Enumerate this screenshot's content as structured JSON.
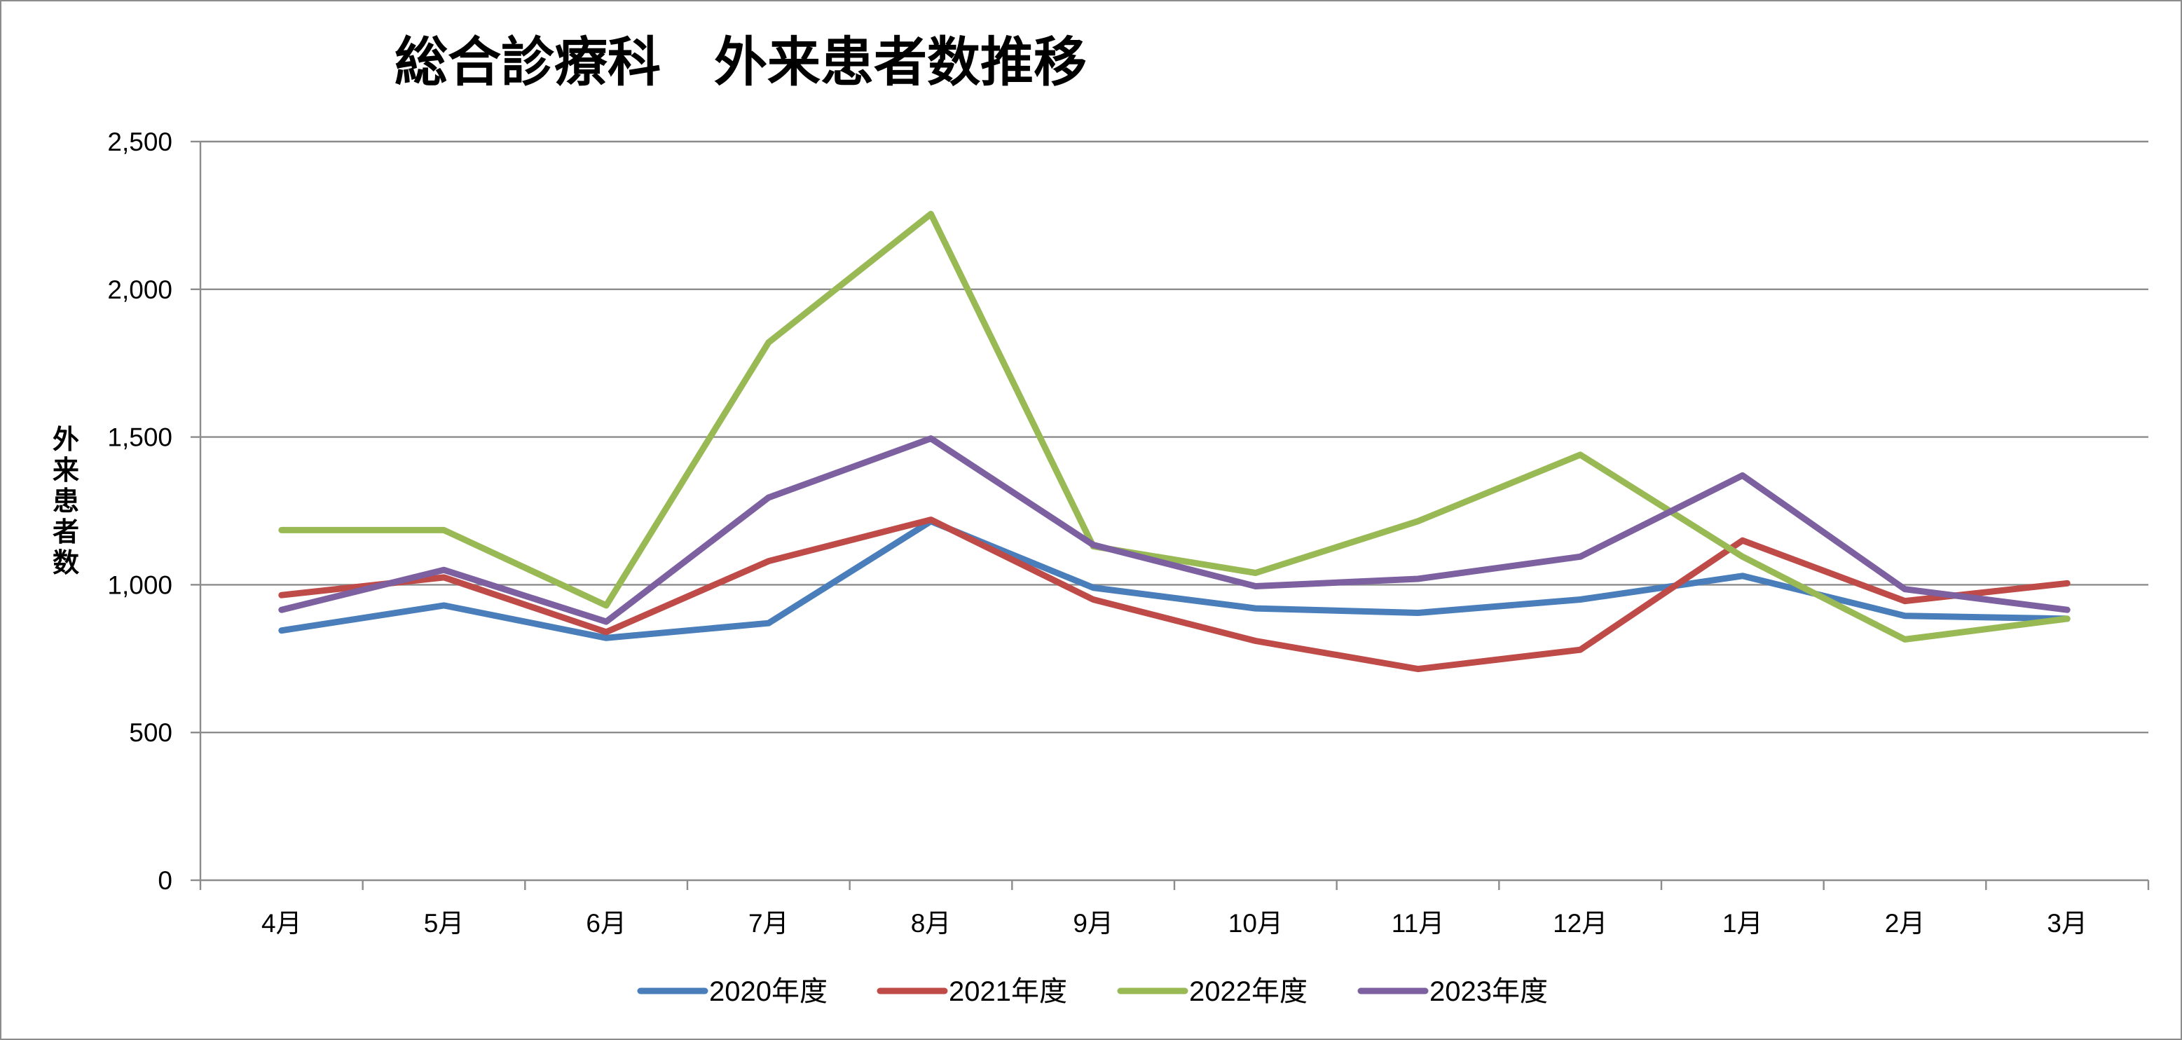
{
  "chart_data": {
    "type": "line",
    "title": "総合診療科　外来患者数推移",
    "ylabel": "外来患者数",
    "xlabel": "",
    "categories": [
      "4月",
      "5月",
      "6月",
      "7月",
      "8月",
      "9月",
      "10月",
      "11月",
      "12月",
      "1月",
      "2月",
      "3月"
    ],
    "ylim": [
      0,
      2500
    ],
    "yticks": [
      0,
      500,
      1000,
      1500,
      2000,
      2500
    ],
    "ytick_labels": [
      "0",
      "500",
      "1,000",
      "1,500",
      "2,000",
      "2,500"
    ],
    "grid": true,
    "legend_position": "bottom",
    "series": [
      {
        "name": "2020年度",
        "color": "#4a7ebb",
        "values": [
          845,
          930,
          820,
          870,
          1215,
          990,
          920,
          905,
          950,
          1030,
          895,
          885
        ]
      },
      {
        "name": "2021年度",
        "color": "#be4b48",
        "values": [
          965,
          1025,
          840,
          1080,
          1220,
          950,
          810,
          715,
          780,
          1150,
          945,
          1005
        ]
      },
      {
        "name": "2022年度",
        "color": "#98b954",
        "values": [
          1185,
          1185,
          930,
          1820,
          2255,
          1130,
          1040,
          1215,
          1440,
          1095,
          815,
          885
        ]
      },
      {
        "name": "2023年度",
        "color": "#7d60a0",
        "values": [
          915,
          1050,
          875,
          1295,
          1495,
          1135,
          995,
          1020,
          1095,
          1370,
          985,
          915
        ]
      }
    ]
  }
}
